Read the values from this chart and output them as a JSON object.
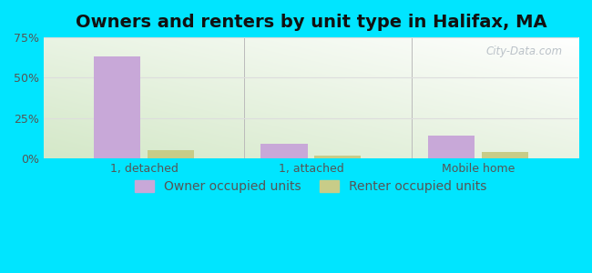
{
  "title": "Owners and renters by unit type in Halifax, MA",
  "categories": [
    "1, detached",
    "1, attached",
    "Mobile home"
  ],
  "owner_values": [
    63.0,
    9.0,
    14.0
  ],
  "renter_values": [
    5.0,
    2.0,
    4.0
  ],
  "owner_color": "#c8a8d8",
  "renter_color": "#c8cc88",
  "bar_width": 0.28,
  "ylim": [
    0,
    75
  ],
  "yticks": [
    0,
    25,
    50,
    75
  ],
  "ytick_labels": [
    "0%",
    "25%",
    "50%",
    "75%"
  ],
  "background_outer": "#00e5ff",
  "bg_topleft": "#d4e8c8",
  "bg_topright": "#f8fff8",
  "bg_bottomleft": "#e8f4d8",
  "bg_bottomright": "#ffffff",
  "title_fontsize": 14,
  "tick_fontsize": 9,
  "legend_fontsize": 10,
  "watermark": "City-Data.com",
  "separator_color": "#bbbbbb",
  "grid_color": "#dddddd"
}
